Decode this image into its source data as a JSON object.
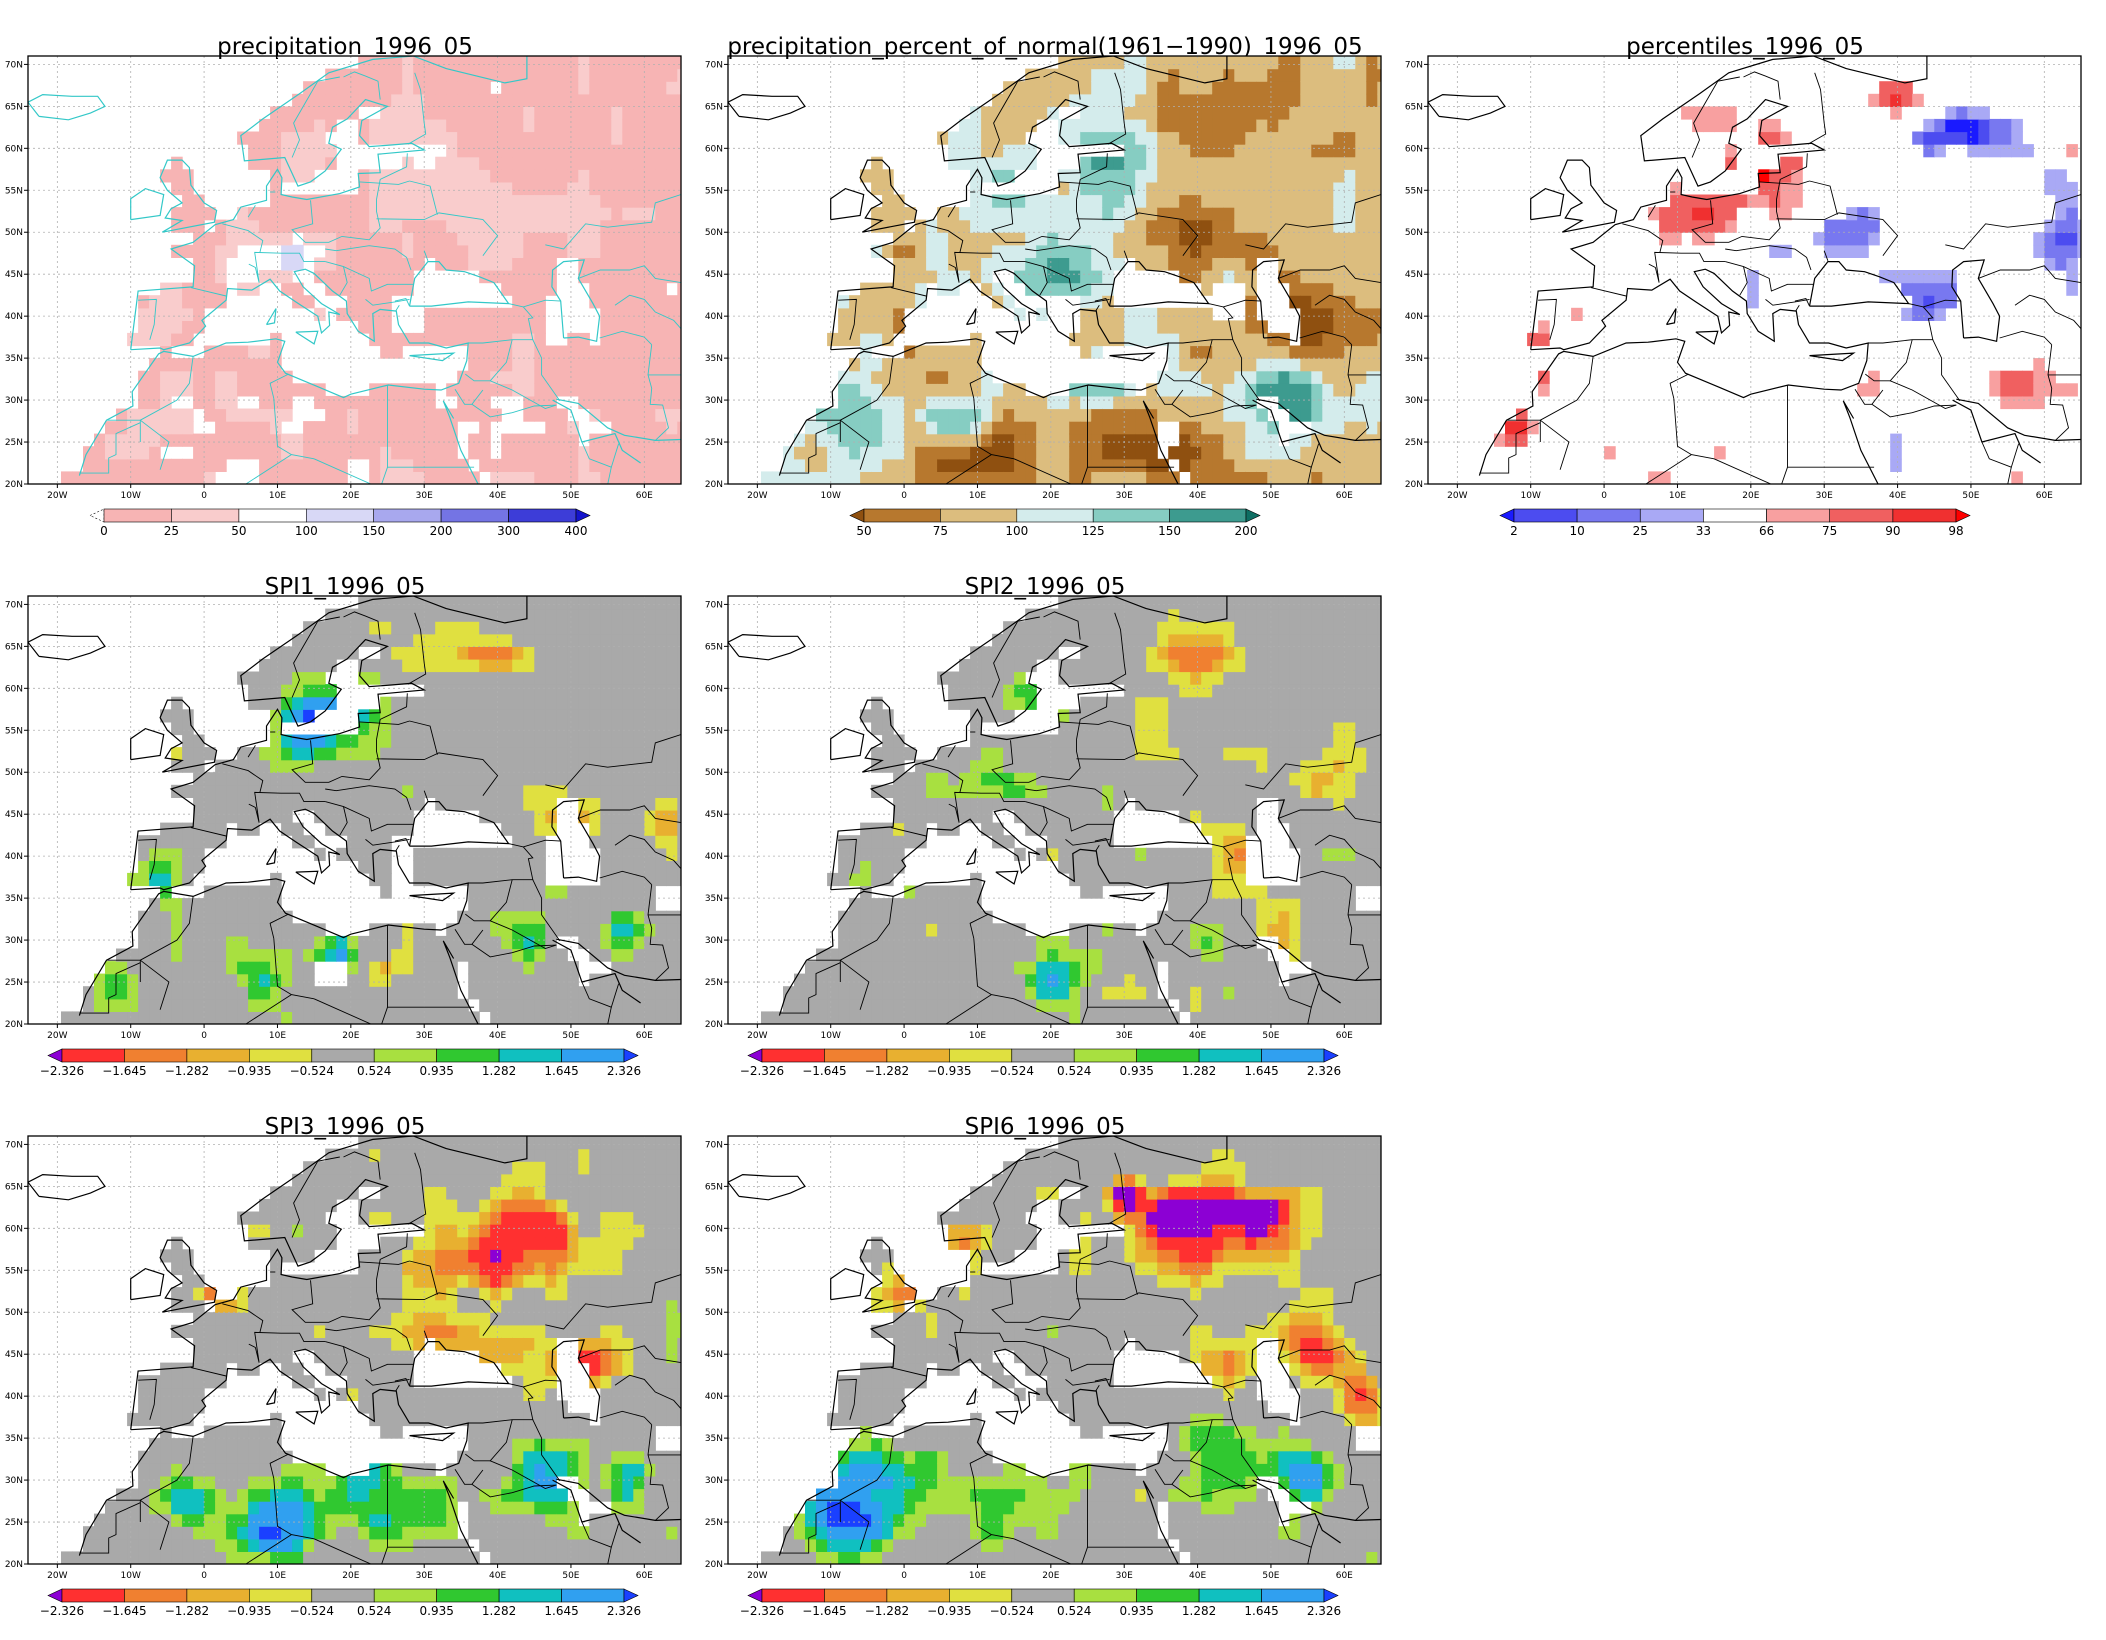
{
  "panels": [
    {
      "id": "precip",
      "title": "precipitation_1996_05",
      "scheme": "precip",
      "left": true,
      "colorbar": {
        "colors": [
          "#ffffff",
          "#f7b4b4",
          "#f9cccc",
          "#ffffff",
          "#d8d8f6",
          "#a8a8ee",
          "#7474e4",
          "#3d3dd8",
          "#1414cc"
        ],
        "labels": [
          "0",
          "25",
          "50",
          "100",
          "150",
          "200",
          "300",
          "400"
        ],
        "leftDashed": true,
        "leftArrow": false,
        "rightArrow": true
      }
    },
    {
      "id": "pct",
      "title": "precipitation_percent_of_normal(1961−1990)_1996_05",
      "scheme": "pct",
      "left": true,
      "colorbar": {
        "colors": [
          "#8f5010",
          "#b7782e",
          "#dcbd7e",
          "#d4ecec",
          "#86cdc2",
          "#3d9b8f",
          "#0e6e63"
        ],
        "labels": [
          "50",
          "75",
          "100",
          "125",
          "150",
          "200"
        ],
        "leftArrow": true,
        "rightArrow": true
      }
    },
    {
      "id": "perc",
      "title": "percentiles_1996_05",
      "scheme": "perc",
      "left": true,
      "colorbar": {
        "colors": [
          "#1a1aff",
          "#4c4cf0",
          "#7878f0",
          "#a9a9f5",
          "#ffffff",
          "#f8a0a0",
          "#f06060",
          "#f03030",
          "#ff0000"
        ],
        "labels": [
          "2",
          "10",
          "25",
          "33",
          "66",
          "75",
          "90",
          "98"
        ],
        "leftArrow": true,
        "rightArrow": true
      }
    },
    {
      "id": "spi1",
      "title": "SPI1_1996_05",
      "scheme": "spi",
      "seed": 1
    },
    {
      "id": "spi2",
      "title": "SPI2_1996_05",
      "scheme": "spi",
      "seed": 2
    },
    {
      "id": "spi3",
      "title": "SPI3_1996_05",
      "scheme": "spi",
      "seed": 3
    },
    {
      "id": "spi6",
      "title": "SPI6_1996_05",
      "scheme": "spi",
      "seed": 6
    }
  ],
  "spi_colorbar": {
    "colors": [
      "#8c00d4",
      "#ff3030",
      "#f08030",
      "#e8b030",
      "#e0e040",
      "#a9a9a9",
      "#a8e040",
      "#30c830",
      "#10c0c0",
      "#30a0f0",
      "#1a40ff"
    ],
    "labels": [
      "−2.326",
      "−1.645",
      "−1.282",
      "−0.935",
      "−0.524",
      "0.524",
      "0.935",
      "1.282",
      "1.645",
      "2.326"
    ]
  },
  "lon_ticks": [
    "20W",
    "10W",
    "0",
    "10E",
    "20E",
    "30E",
    "40E",
    "50E",
    "60E"
  ],
  "lat_ticks": [
    "70N",
    "65N",
    "60N",
    "55N",
    "50N",
    "45N",
    "40N",
    "35N",
    "30N",
    "25N",
    "20N"
  ]
}
